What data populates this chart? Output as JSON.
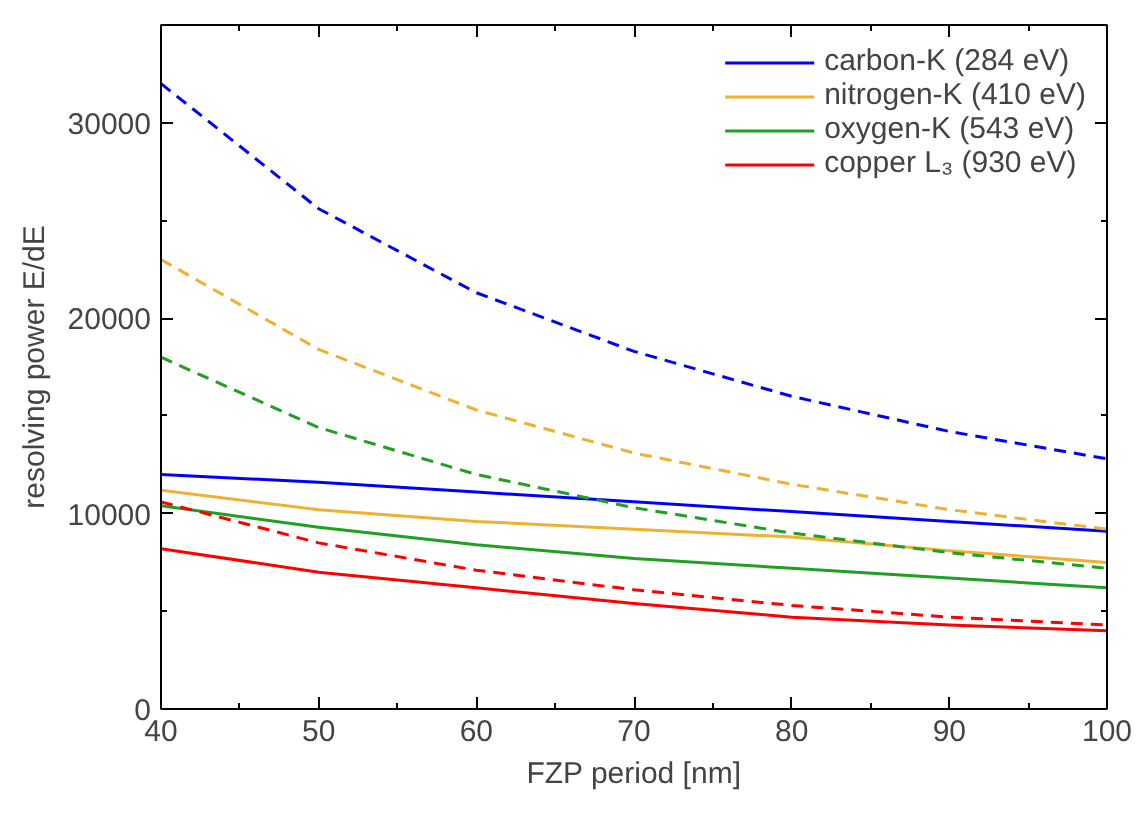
{
  "chart_data": {
    "type": "line",
    "xlabel": "FZP period [nm]",
    "ylabel": "resolving power E/dE",
    "x": [
      40,
      50,
      60,
      70,
      80,
      90,
      100
    ],
    "xlim": [
      40,
      100
    ],
    "xticks": [
      40,
      50,
      60,
      70,
      80,
      90,
      100
    ],
    "ylim": [
      0,
      35000
    ],
    "yticks": [
      0,
      10000,
      20000,
      30000
    ],
    "grid": false,
    "legend": "top right",
    "series": [
      {
        "name": "carbon-K (284 eV)",
        "color": "#0000ff",
        "line_style": "solid",
        "values": [
          12000,
          11600,
          11100,
          10600,
          10100,
          9600,
          9100
        ]
      },
      {
        "name": "nitrogen-K (410 eV)",
        "color": "#f0b030",
        "line_style": "solid",
        "values": [
          11200,
          10200,
          9600,
          9200,
          8800,
          8100,
          7500
        ]
      },
      {
        "name": "oxygen-K (543 eV)",
        "color": "#20a020",
        "line_style": "solid",
        "values": [
          10400,
          9300,
          8400,
          7700,
          7200,
          6700,
          6200
        ]
      },
      {
        "name": "copper L₃ (930 eV)",
        "color": "#ff0000",
        "line_style": "solid",
        "values": [
          8200,
          7000,
          6200,
          5400,
          4700,
          4300,
          4000
        ]
      },
      {
        "color": "#0000ff",
        "line_style": "dashed",
        "values": [
          32000,
          25600,
          21300,
          18300,
          16000,
          14200,
          12800
        ]
      },
      {
        "color": "#f0b030",
        "line_style": "dashed",
        "values": [
          23000,
          18400,
          15300,
          13100,
          11500,
          10200,
          9200
        ]
      },
      {
        "color": "#20a020",
        "line_style": "dashed",
        "values": [
          18000,
          14400,
          12000,
          10300,
          9000,
          8000,
          7200
        ]
      },
      {
        "color": "#ff0000",
        "line_style": "dashed",
        "values": [
          10600,
          8500,
          7100,
          6100,
          5300,
          4700,
          4300
        ]
      }
    ]
  }
}
